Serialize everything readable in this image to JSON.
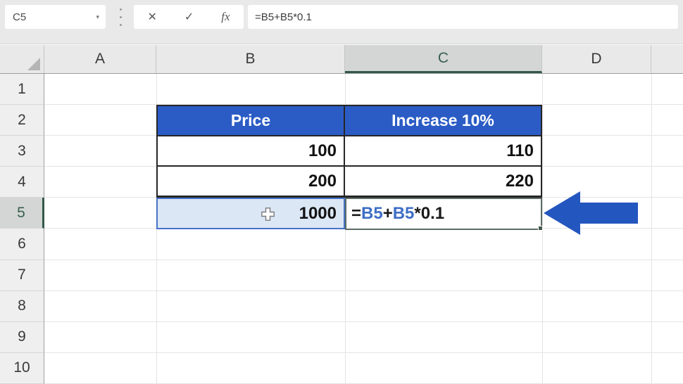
{
  "formula_row": {
    "name_box_value": "C5",
    "name_box_caret": "▾",
    "cancel_label": "✕",
    "enter_label": "✓",
    "insert_function_label": "fx",
    "formula": "=B5+B5*0.1"
  },
  "grid": {
    "column_headers": [
      "A",
      "B",
      "C",
      "D"
    ],
    "row_headers": [
      "1",
      "2",
      "3",
      "4",
      "5",
      "6",
      "7",
      "8",
      "9",
      "10"
    ],
    "active_cell": "C5",
    "selected_column": "C",
    "selected_row": "5"
  },
  "sheet": {
    "b2": "Price",
    "c2": "Increase 10%",
    "b3": "100",
    "c3": "110",
    "b4": "200",
    "c4": "220",
    "b5": "1000",
    "c5_segments": [
      {
        "text": "=",
        "color": "#1a1a1a"
      },
      {
        "text": "B5",
        "color": "#3f6ec6"
      },
      {
        "text": "+",
        "color": "#1a1a1a"
      },
      {
        "text": "B5",
        "color": "#3f6ec6"
      },
      {
        "text": "*0.1",
        "color": "#1a1a1a"
      }
    ]
  },
  "colors": {
    "header_fill": "#2b5cc5",
    "ref_highlight_fill": "#dce7f5",
    "ref_highlight_border": "#4673c8",
    "selected_header_text": "#3a5f51",
    "selected_header_underline": "#33584a",
    "arrow": "#2456c0"
  }
}
